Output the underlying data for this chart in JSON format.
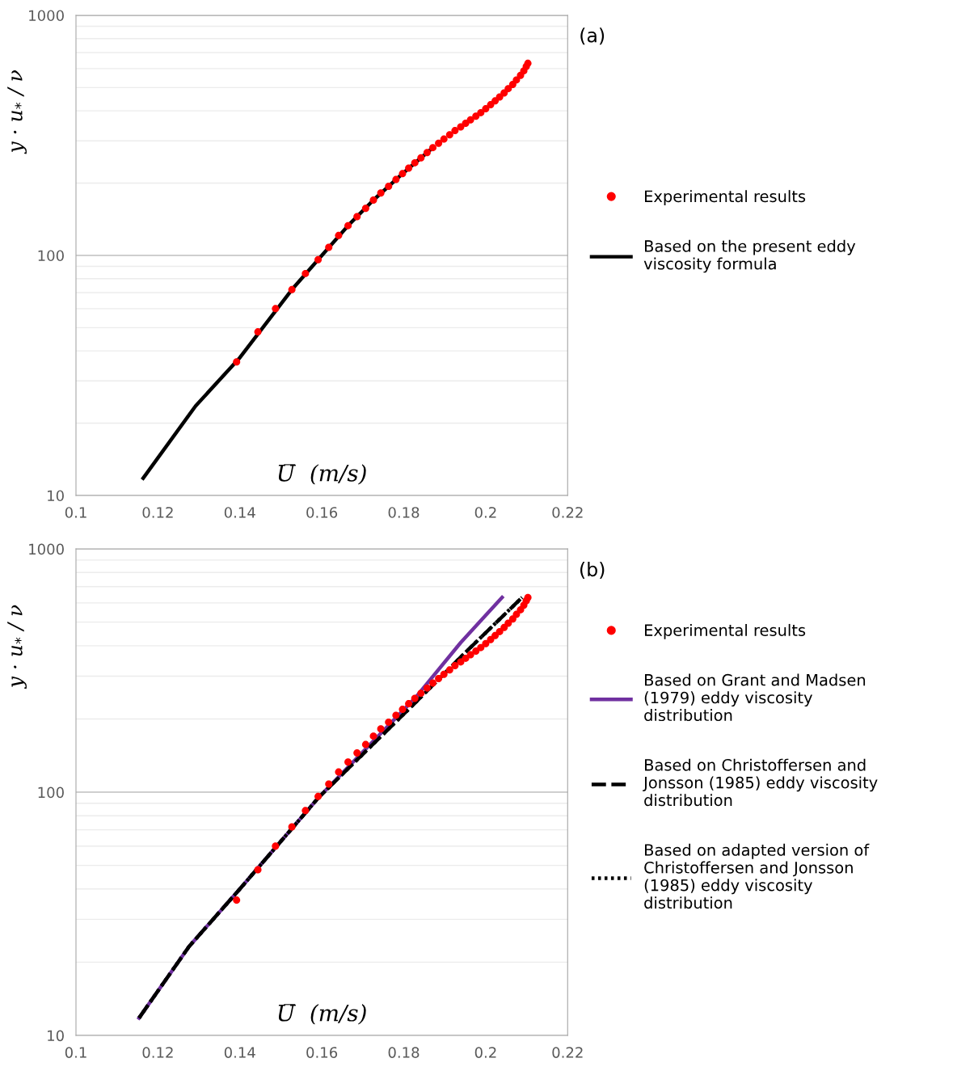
{
  "chart_data": [
    {
      "type": "line",
      "title": "(a)",
      "xlabel": "U̅  (m/s)",
      "ylabel": "y · u$_{*}$ / ν",
      "log": "y",
      "xlim": [
        0.1,
        0.22
      ],
      "xticks": [
        0.1,
        0.12,
        0.14,
        0.16,
        0.18,
        0.2,
        0.22
      ],
      "ylim": [
        10,
        1000
      ],
      "yticks": [
        10,
        100,
        1000
      ],
      "grid": "y",
      "legend": "right",
      "series": [
        {
          "name": "Experimental results",
          "type": "scatter",
          "marker": "circle",
          "color": "#ff0000",
          "x": [
            0.1392,
            0.1444,
            0.1487,
            0.1527,
            0.156,
            0.1591,
            0.1617,
            0.1641,
            0.1664,
            0.1686,
            0.1707,
            0.1726,
            0.1744,
            0.1763,
            0.1781,
            0.1797,
            0.1812,
            0.1827,
            0.1842,
            0.1857,
            0.1871,
            0.1885,
            0.1898,
            0.1912,
            0.1925,
            0.1939,
            0.1951,
            0.1963,
            0.1976,
            0.1988,
            0.2,
            0.2012,
            0.2023,
            0.2034,
            0.2045,
            0.2055,
            0.2066,
            0.2075,
            0.2085,
            0.2093,
            0.2099,
            0.2103
          ],
          "values": [
            36,
            48,
            60,
            72,
            84,
            96,
            108,
            121,
            133,
            145,
            157,
            170,
            182,
            194,
            207,
            219,
            231,
            243,
            255,
            268,
            281,
            293,
            305,
            318,
            331,
            343,
            355,
            367,
            380,
            393,
            408,
            424,
            440,
            457,
            475,
            495,
            515,
            538,
            562,
            587,
            612,
            631
          ]
        },
        {
          "name": "Based on the present eddy viscosity formula",
          "line_style": "solid",
          "color": "#000000",
          "x": [
            0.1164,
            0.1292,
            0.14,
            0.1527,
            0.1591,
            0.1664,
            0.1726,
            0.1797,
            0.1871
          ],
          "values": [
            11.8,
            23.6,
            37.5,
            72,
            96,
            133,
            170,
            219,
            281
          ]
        }
      ]
    },
    {
      "type": "line",
      "title": "(b)",
      "xlabel": "U̅  (m/s)",
      "ylabel": "y · u$_{*}$ / ν",
      "log": "y",
      "xlim": [
        0.1,
        0.22
      ],
      "xticks": [
        0.1,
        0.12,
        0.14,
        0.16,
        0.18,
        0.2,
        0.22
      ],
      "ylim": [
        10,
        1000
      ],
      "yticks": [
        10,
        100,
        1000
      ],
      "grid": "y",
      "legend": "right",
      "series": [
        {
          "name": "Experimental results",
          "type": "scatter",
          "marker": "circle",
          "color": "#ff0000",
          "x": [
            0.1392,
            0.1444,
            0.1487,
            0.1527,
            0.156,
            0.1591,
            0.1617,
            0.1641,
            0.1664,
            0.1686,
            0.1707,
            0.1726,
            0.1744,
            0.1763,
            0.1781,
            0.1797,
            0.1812,
            0.1827,
            0.1842,
            0.1857,
            0.1871,
            0.1885,
            0.1898,
            0.1912,
            0.1925,
            0.1939,
            0.1951,
            0.1963,
            0.1976,
            0.1988,
            0.2,
            0.2012,
            0.2023,
            0.2034,
            0.2045,
            0.2055,
            0.2066,
            0.2075,
            0.2085,
            0.2093,
            0.2099,
            0.2103
          ],
          "values": [
            36,
            48,
            60,
            72,
            84,
            96,
            108,
            121,
            133,
            145,
            157,
            170,
            182,
            194,
            207,
            219,
            231,
            243,
            255,
            268,
            281,
            293,
            305,
            318,
            331,
            343,
            355,
            367,
            380,
            393,
            408,
            424,
            440,
            457,
            475,
            495,
            515,
            538,
            562,
            587,
            612,
            631
          ]
        },
        {
          "name": "Based on Grant and Madsen (1979) eddy viscosity distribution",
          "line_style": "solid",
          "color": "#7030a0",
          "x": [
            0.1154,
            0.1276,
            0.14,
            0.1592,
            0.1829,
            0.1939,
            0.204
          ],
          "values": [
            11.8,
            23.2,
            40,
            95,
            245,
            412,
            632
          ]
        },
        {
          "name": "Based on Christoffersen and Jonsson (1985) eddy viscosity distribution",
          "line_style": "dashed",
          "color": "#000000",
          "x": [
            0.1154,
            0.1276,
            0.14,
            0.1592,
            0.1813,
            0.1951,
            0.2089
          ],
          "values": [
            11.8,
            23.2,
            40,
            95,
            220,
            376,
            632
          ]
        },
        {
          "name": "Based on adapted version of Christoffersen and Jonsson (1985) eddy viscosity distribution",
          "line_style": "dotted",
          "color": "#000000",
          "x": [
            0.1154,
            0.1276,
            0.14,
            0.1592,
            0.1813,
            0.1951,
            0.2089
          ],
          "values": [
            11.8,
            23.2,
            40,
            95,
            220,
            376,
            632
          ]
        }
      ]
    }
  ]
}
